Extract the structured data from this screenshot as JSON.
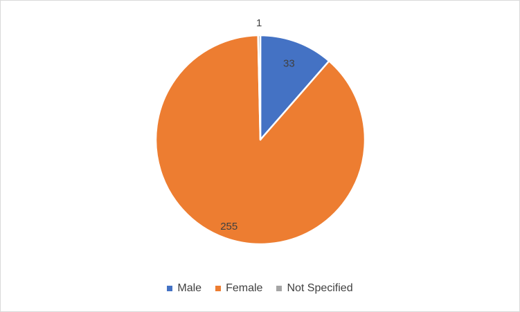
{
  "chart_data": {
    "type": "pie",
    "categories": [
      "Male",
      "Female",
      "Not Specified"
    ],
    "values": [
      33,
      255,
      1
    ],
    "data_labels": [
      "33",
      "255",
      "1"
    ],
    "colors": [
      "#4472C4",
      "#ED7D31",
      "#A5A5A5"
    ],
    "title": "",
    "legend_position": "bottom"
  }
}
